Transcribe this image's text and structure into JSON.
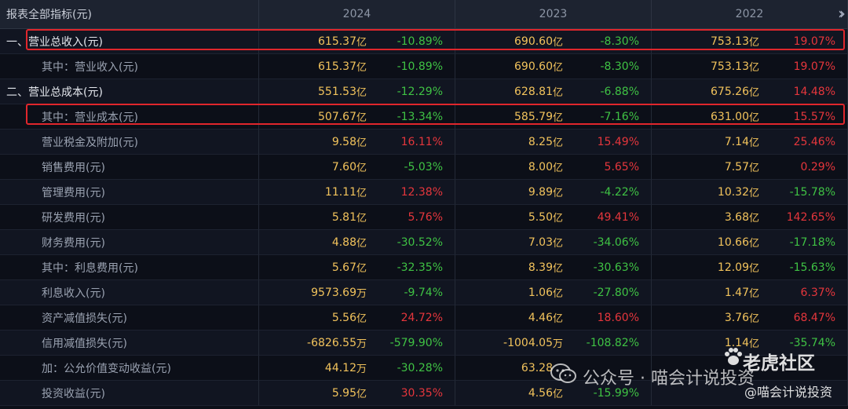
{
  "header": {
    "label": "报表全部指标(元)",
    "years": [
      "2024",
      "2023",
      "2022"
    ],
    "more_icon": "double-chevron-right-icon"
  },
  "rows": [
    {
      "label": "一、营业总收入(元)",
      "level": "top",
      "cells": [
        {
          "v": "615.37",
          "u": "亿",
          "p": "-10.89%",
          "s": "neg"
        },
        {
          "v": "690.60",
          "u": "亿",
          "p": "-8.30%",
          "s": "neg"
        },
        {
          "v": "753.13",
          "u": "亿",
          "p": "19.07%",
          "s": "pos"
        }
      ]
    },
    {
      "label": "其中：营业收入(元)",
      "level": "sub",
      "cells": [
        {
          "v": "615.37",
          "u": "亿",
          "p": "-10.89%",
          "s": "neg"
        },
        {
          "v": "690.60",
          "u": "亿",
          "p": "-8.30%",
          "s": "neg"
        },
        {
          "v": "753.13",
          "u": "亿",
          "p": "19.07%",
          "s": "pos"
        }
      ]
    },
    {
      "label": "二、营业总成本(元)",
      "level": "top",
      "cells": [
        {
          "v": "551.53",
          "u": "亿",
          "p": "-12.29%",
          "s": "neg"
        },
        {
          "v": "628.81",
          "u": "亿",
          "p": "-6.88%",
          "s": "neg"
        },
        {
          "v": "675.26",
          "u": "亿",
          "p": "14.48%",
          "s": "pos"
        }
      ]
    },
    {
      "label": "其中：营业成本(元)",
      "level": "sub",
      "cells": [
        {
          "v": "507.67",
          "u": "亿",
          "p": "-13.34%",
          "s": "neg"
        },
        {
          "v": "585.79",
          "u": "亿",
          "p": "-7.16%",
          "s": "neg"
        },
        {
          "v": "631.00",
          "u": "亿",
          "p": "15.57%",
          "s": "pos"
        }
      ]
    },
    {
      "label": "营业税金及附加(元)",
      "level": "sub",
      "cells": [
        {
          "v": "9.58",
          "u": "亿",
          "p": "16.11%",
          "s": "pos"
        },
        {
          "v": "8.25",
          "u": "亿",
          "p": "15.49%",
          "s": "pos"
        },
        {
          "v": "7.14",
          "u": "亿",
          "p": "25.46%",
          "s": "pos"
        }
      ]
    },
    {
      "label": "销售费用(元)",
      "level": "sub",
      "cells": [
        {
          "v": "7.60",
          "u": "亿",
          "p": "-5.03%",
          "s": "neg"
        },
        {
          "v": "8.00",
          "u": "亿",
          "p": "5.65%",
          "s": "pos"
        },
        {
          "v": "7.57",
          "u": "亿",
          "p": "0.29%",
          "s": "pos"
        }
      ]
    },
    {
      "label": "管理费用(元)",
      "level": "sub",
      "cells": [
        {
          "v": "11.11",
          "u": "亿",
          "p": "12.38%",
          "s": "pos"
        },
        {
          "v": "9.89",
          "u": "亿",
          "p": "-4.22%",
          "s": "neg"
        },
        {
          "v": "10.32",
          "u": "亿",
          "p": "-15.78%",
          "s": "neg"
        }
      ]
    },
    {
      "label": "研发费用(元)",
      "level": "sub",
      "cells": [
        {
          "v": "5.81",
          "u": "亿",
          "p": "5.76%",
          "s": "pos"
        },
        {
          "v": "5.50",
          "u": "亿",
          "p": "49.41%",
          "s": "pos"
        },
        {
          "v": "3.68",
          "u": "亿",
          "p": "142.65%",
          "s": "pos"
        }
      ]
    },
    {
      "label": "财务费用(元)",
      "level": "sub",
      "cells": [
        {
          "v": "4.88",
          "u": "亿",
          "p": "-30.52%",
          "s": "neg"
        },
        {
          "v": "7.03",
          "u": "亿",
          "p": "-34.06%",
          "s": "neg"
        },
        {
          "v": "10.66",
          "u": "亿",
          "p": "-17.18%",
          "s": "neg"
        }
      ]
    },
    {
      "label": "其中：利息费用(元)",
      "level": "sub",
      "cells": [
        {
          "v": "5.67",
          "u": "亿",
          "p": "-32.35%",
          "s": "neg"
        },
        {
          "v": "8.39",
          "u": "亿",
          "p": "-30.63%",
          "s": "neg"
        },
        {
          "v": "12.09",
          "u": "亿",
          "p": "-15.63%",
          "s": "neg"
        }
      ]
    },
    {
      "label": "利息收入(元)",
      "level": "sub",
      "cells": [
        {
          "v": "9573.69",
          "u": "万",
          "p": "-9.74%",
          "s": "neg"
        },
        {
          "v": "1.06",
          "u": "亿",
          "p": "-27.80%",
          "s": "neg"
        },
        {
          "v": "1.47",
          "u": "亿",
          "p": "6.37%",
          "s": "pos"
        }
      ]
    },
    {
      "label": "资产减值损失(元)",
      "level": "sub",
      "cells": [
        {
          "v": "5.56",
          "u": "亿",
          "p": "24.72%",
          "s": "pos"
        },
        {
          "v": "4.46",
          "u": "亿",
          "p": "18.60%",
          "s": "pos"
        },
        {
          "v": "3.76",
          "u": "亿",
          "p": "68.47%",
          "s": "pos"
        }
      ]
    },
    {
      "label": "信用减值损失(元)",
      "level": "sub",
      "cells": [
        {
          "v": "-6826.55",
          "u": "万",
          "p": "-579.90%",
          "s": "neg"
        },
        {
          "v": "-1004.05",
          "u": "万",
          "p": "-108.82%",
          "s": "neg"
        },
        {
          "v": "1.14",
          "u": "亿",
          "p": "-35.74%",
          "s": "neg"
        }
      ]
    },
    {
      "label": "加：公允价值变动收益(元)",
      "level": "sub",
      "cells": [
        {
          "v": "44.12",
          "u": "万",
          "p": "-30.28%",
          "s": "neg"
        },
        {
          "v": "63.28",
          "u": "",
          "p": "",
          "s": "pos"
        },
        {
          "v": "",
          "u": "",
          "p": "",
          "s": "neg"
        }
      ]
    },
    {
      "label": "投资收益(元)",
      "level": "sub",
      "cells": [
        {
          "v": "5.95",
          "u": "亿",
          "p": "30.35%",
          "s": "pos"
        },
        {
          "v": "4.56",
          "u": "亿",
          "p": "-15.99%",
          "s": "neg"
        },
        {
          "v": "",
          "u": "",
          "p": "",
          "s": "neg"
        }
      ]
    }
  ],
  "watermark": {
    "wechat_text": "公众号 · 喵会计说投资",
    "brand": "老虎社区",
    "handle": "@喵会计说投资",
    "wechat_icon": "wechat-icon",
    "brand_icon": "tiger-paw-icon"
  },
  "colors": {
    "value": "#f2c35c",
    "positive": "#e5363c",
    "negative": "#3fc244",
    "highlight_box": "#e0262c"
  }
}
